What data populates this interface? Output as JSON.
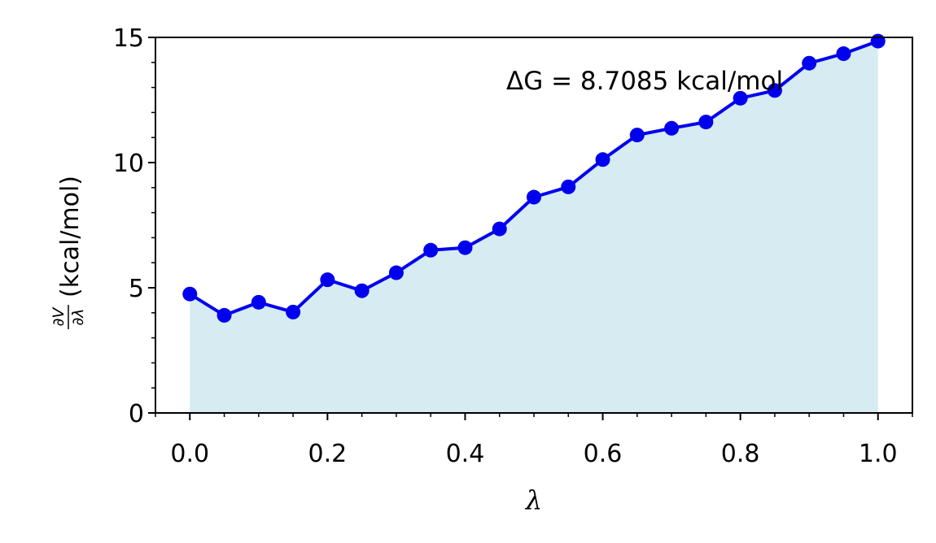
{
  "chart_data": {
    "type": "line",
    "annotation": "ΔG = 8.7085 kcal/mol",
    "xlabel": "λ",
    "ylabel": {
      "numerator": "∂V",
      "denominator": "∂λ",
      "unit": "(kcal/mol)"
    },
    "xlim": [
      -0.05,
      1.05
    ],
    "ylim": [
      0,
      15
    ],
    "x_ticks": [
      "0.0",
      "0.2",
      "0.4",
      "0.6",
      "0.8",
      "1.0"
    ],
    "y_ticks": [
      "0",
      "5",
      "10",
      "15"
    ],
    "x": [
      0.0,
      0.05,
      0.1,
      0.15,
      0.2,
      0.25,
      0.3,
      0.35,
      0.4,
      0.45,
      0.5,
      0.55,
      0.6,
      0.65,
      0.7,
      0.75,
      0.8,
      0.85,
      0.9,
      0.95,
      1.0
    ],
    "y": [
      4.75,
      3.9,
      4.42,
      4.03,
      5.32,
      4.88,
      5.6,
      6.5,
      6.6,
      7.35,
      8.62,
      9.03,
      10.12,
      11.1,
      11.37,
      11.62,
      12.57,
      12.88,
      13.97,
      14.35,
      14.85
    ],
    "grid": false,
    "colors": {
      "line": "#0000ee",
      "fill": "#add8e6"
    }
  }
}
